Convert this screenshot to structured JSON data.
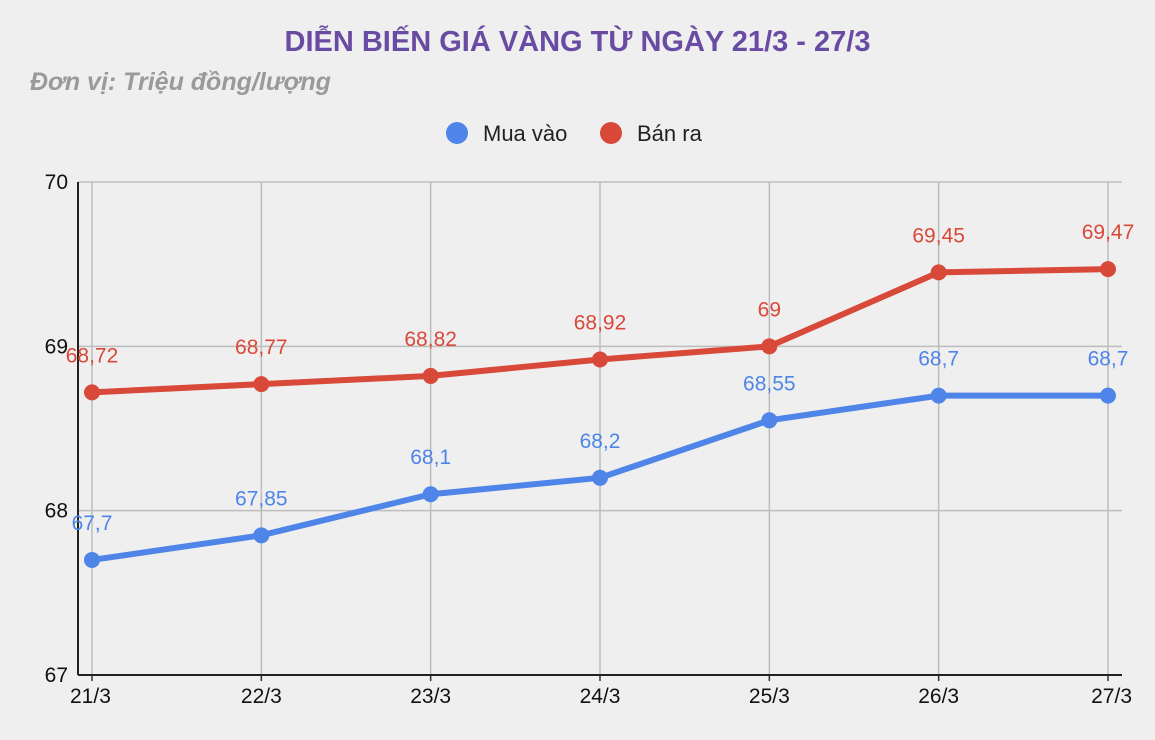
{
  "chart_data": {
    "type": "line",
    "title": "DIỄN BIẾN GIÁ VÀNG TỪ NGÀY 21/3 - 27/3",
    "subtitle": "Đơn vị: Triệu đồng/lượng",
    "categories": [
      "21/3",
      "22/3",
      "23/3",
      "24/3",
      "25/3",
      "26/3",
      "27/3"
    ],
    "series": [
      {
        "name": "Mua vào",
        "color": "#4f85e8",
        "values": [
          67.7,
          67.85,
          68.1,
          68.2,
          68.55,
          68.7,
          68.7
        ],
        "labels": [
          "67,7",
          "67,85",
          "68,1",
          "68,2",
          "68,55",
          "68,7",
          "68,7"
        ]
      },
      {
        "name": "Bán ra",
        "color": "#d9493a",
        "values": [
          68.72,
          68.77,
          68.82,
          68.92,
          69,
          69.45,
          69.47
        ],
        "labels": [
          "68,72",
          "68,77",
          "68,82",
          "68,92",
          "69",
          "69,45",
          "69,47"
        ]
      }
    ],
    "ylim": [
      67,
      70
    ],
    "yticks": [
      "67",
      "68",
      "69",
      "70"
    ],
    "grid": true,
    "legend_position": "top-center"
  }
}
